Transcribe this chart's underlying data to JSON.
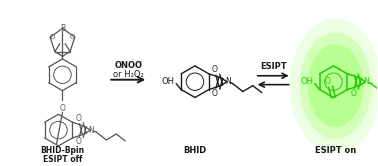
{
  "background_color": "#ffffff",
  "fig_width": 3.78,
  "fig_height": 1.66,
  "dpi": 100,
  "mol1_color": "#555555",
  "mol2_color": "#1a1a1a",
  "mol3_color": "#22cc00",
  "glow_color": "#88ff44",
  "label1_line1": "BHID-Bpin",
  "label1_line2": "ESIPT off",
  "label2": "BHID",
  "label3": "ESIPT on",
  "arrow1_label1": "ONOO",
  "arrow1_label1b": "⁻",
  "arrow1_label2": "or H₂O₂",
  "arrow2_label": "ESIPT"
}
